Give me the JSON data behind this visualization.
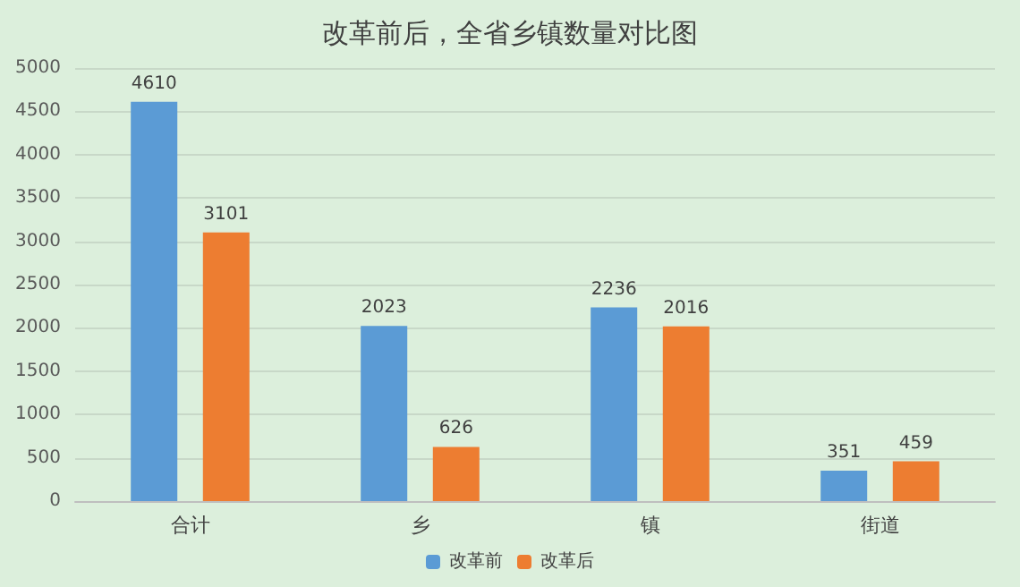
{
  "chart_data": {
    "type": "bar",
    "title": "改革前后，全省乡镇数量对比图",
    "categories": [
      "合计",
      "乡",
      "镇",
      "街道"
    ],
    "series": [
      {
        "name": "改革前",
        "color": "#5b9bd5",
        "values": [
          4610,
          2023,
          2236,
          351
        ]
      },
      {
        "name": "改革后",
        "color": "#ed7d31",
        "values": [
          3101,
          626,
          2016,
          459
        ]
      }
    ],
    "ylim": [
      0,
      5000
    ],
    "yticks": [
      0,
      500,
      1000,
      1500,
      2000,
      2500,
      3000,
      3500,
      4000,
      4500,
      5000
    ],
    "grid": "y",
    "legend": "bottom",
    "data_labels": true
  }
}
